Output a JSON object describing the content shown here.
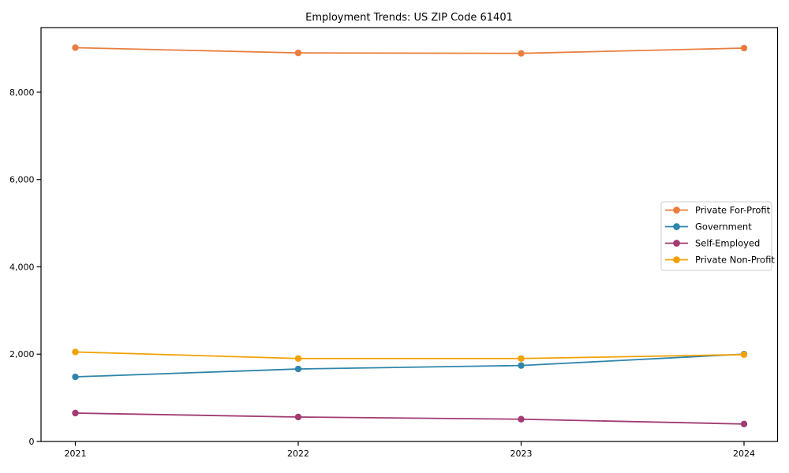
{
  "title": "Employment Trends: US ZIP Code 61401",
  "chart_data": {
    "type": "line",
    "title": "Employment Trends: US ZIP Code 61401",
    "x": [
      2021,
      2022,
      2023,
      2024
    ],
    "x_tick_labels": [
      "2021",
      "2022",
      "2023",
      "2024"
    ],
    "y_ticks": [
      0,
      2000,
      4000,
      6000,
      8000
    ],
    "y_tick_labels": [
      "0",
      "2,000",
      "4,000",
      "6,000",
      "8,000"
    ],
    "ylim": [
      0,
      9480
    ],
    "xlabel": "",
    "ylabel": "",
    "grid": false,
    "marker": "circle",
    "legend_position": "center-right",
    "legend_entries": [
      "Private For-Profit",
      "Government",
      "Self-Employed",
      "Private Non-Profit"
    ],
    "series": [
      {
        "name": "Private For-Profit",
        "color": "#e97e3e",
        "values": [
          9020,
          8900,
          8890,
          9010
        ]
      },
      {
        "name": "Government",
        "color": "#2e86ab",
        "values": [
          1480,
          1660,
          1740,
          2000
        ]
      },
      {
        "name": "Self-Employed",
        "color": "#a23b72",
        "values": [
          650,
          560,
          510,
          400
        ]
      },
      {
        "name": "Private Non-Profit",
        "color": "#f2a104",
        "values": [
          2050,
          1900,
          1900,
          1990
        ]
      }
    ],
    "colors": {
      "spine": "#000000",
      "background": "#ffffff",
      "legend_border": "#cccccc"
    }
  }
}
